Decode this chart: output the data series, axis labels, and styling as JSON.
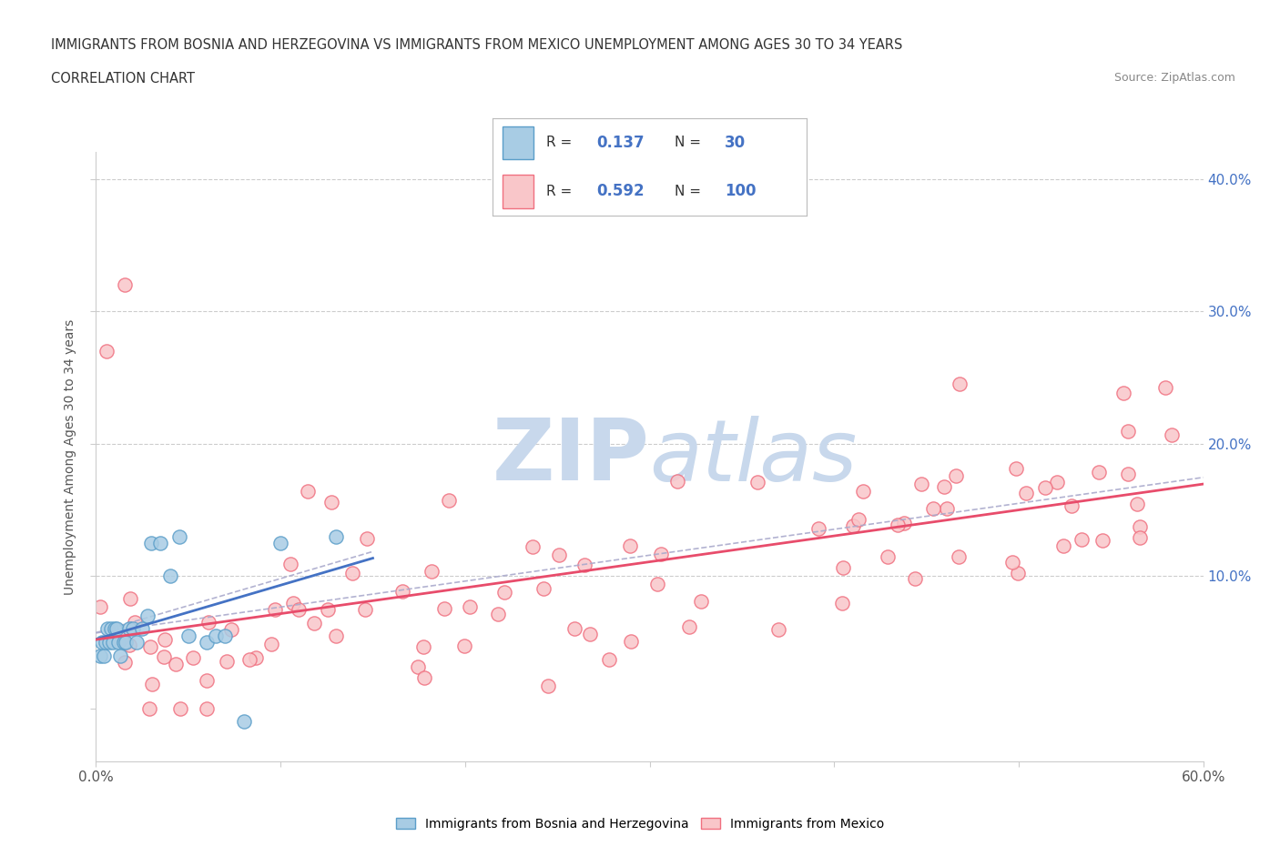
{
  "title_line1": "IMMIGRANTS FROM BOSNIA AND HERZEGOVINA VS IMMIGRANTS FROM MEXICO UNEMPLOYMENT AMONG AGES 30 TO 34 YEARS",
  "title_line2": "CORRELATION CHART",
  "source_text": "Source: ZipAtlas.com",
  "ylabel": "Unemployment Among Ages 30 to 34 years",
  "xlim": [
    0.0,
    0.6
  ],
  "ylim": [
    -0.04,
    0.42
  ],
  "bosnia_color": "#a8cce4",
  "bosnia_edge": "#5b9ec9",
  "mexico_color": "#f9c6c9",
  "mexico_edge": "#f07080",
  "bosnia_trend_color": "#4472c4",
  "mexico_trend_color": "#e84c6b",
  "dash_color": "#aaaacc",
  "watermark_color": "#c8d8ec",
  "seed": 42
}
